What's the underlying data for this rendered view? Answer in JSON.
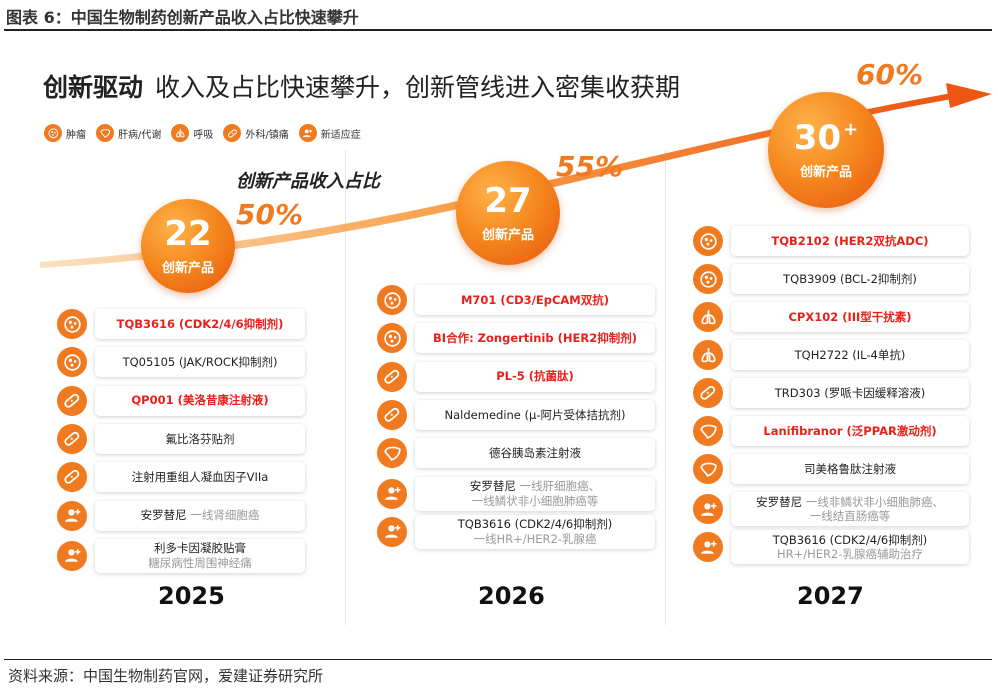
{
  "figure_title": "图表 6：中国生物制药创新产品收入占比快速攀升",
  "headline_bold": "创新驱动",
  "headline_rest": "收入及占比快速攀升，创新管线进入密集收获期",
  "subtitle": "创新产品收入占比",
  "source": "资料来源：中国生物制药官网，爱建证券研究所",
  "colors": {
    "accent": "#f07a1f",
    "highlight": "#e8201a",
    "secondary": "#9a9a9a"
  },
  "legend": [
    {
      "icon": "tumor-icon",
      "label": "肿瘤"
    },
    {
      "icon": "liver-icon",
      "label": "肝病/代谢"
    },
    {
      "icon": "lung-icon",
      "label": "呼吸"
    },
    {
      "icon": "bandage-icon",
      "label": "外科/镇痛"
    },
    {
      "icon": "person-plus-icon",
      "label": "新适应症"
    }
  ],
  "chart_data": {
    "type": "bar",
    "x": [
      "2025",
      "2026",
      "2027"
    ],
    "series": [
      {
        "values": [
          "22",
          "27",
          "30+"
        ]
      },
      {
        "values": [
          "50%",
          "55%",
          "60%"
        ]
      }
    ],
    "bubble_label": "创新产品",
    "columns": [
      {
        "year": "2025",
        "count": "22",
        "share": "50%",
        "items": [
          {
            "icon": "tumor-icon",
            "text": "TQB3616 (CDK2/4/6抑制剂)",
            "highlight": true,
            "sub": ""
          },
          {
            "icon": "tumor-icon",
            "text": "TQ05105 (JAK/ROCK抑制剂)",
            "highlight": false,
            "sub": ""
          },
          {
            "icon": "bandage-icon",
            "text": "QP001 (美洛昔康注射液)",
            "highlight": true,
            "sub": ""
          },
          {
            "icon": "bandage-icon",
            "text": "氟比洛芬贴剂",
            "highlight": false,
            "sub": ""
          },
          {
            "icon": "bandage-icon",
            "text": "注射用重组人凝血因子VIIa",
            "highlight": false,
            "sub": ""
          },
          {
            "icon": "person-plus-icon",
            "text": "安罗替尼",
            "highlight": false,
            "inline_sub": "一线肾细胞癌",
            "sub": ""
          },
          {
            "icon": "person-plus-icon",
            "text": "利多卡因凝胶贴膏",
            "highlight": false,
            "sub": "糖尿病性周围神经痛"
          }
        ]
      },
      {
        "year": "2026",
        "count": "27",
        "share": "55%",
        "items": [
          {
            "icon": "tumor-icon",
            "text": "M701 (CD3/EpCAM双抗)",
            "highlight": true,
            "sub": ""
          },
          {
            "icon": "tumor-icon",
            "text": "BI合作: Zongertinib (HER2抑制剂)",
            "highlight": true,
            "sub": ""
          },
          {
            "icon": "bandage-icon",
            "text": "PL-5 (抗菌肽)",
            "highlight": true,
            "sub": ""
          },
          {
            "icon": "bandage-icon",
            "text": "Naldemedine (μ-阿片受体拮抗剂)",
            "highlight": false,
            "sub": ""
          },
          {
            "icon": "liver-icon",
            "text": "德谷胰岛素注射液",
            "highlight": false,
            "sub": ""
          },
          {
            "icon": "person-plus-icon",
            "text": "安罗替尼",
            "highlight": false,
            "inline_sub": "一线肝细胞癌、",
            "sub": "一线鳞状非小细胞肺癌等"
          },
          {
            "icon": "person-plus-icon",
            "text": "TQB3616 (CDK2/4/6抑制剂)",
            "highlight": false,
            "sub": "一线HR+/HER2-乳腺癌"
          }
        ]
      },
      {
        "year": "2027",
        "count": "30",
        "count_suffix": "+",
        "share": "60%",
        "items": [
          {
            "icon": "tumor-icon",
            "text": "TQB2102 (HER2双抗ADC)",
            "highlight": true,
            "sub": ""
          },
          {
            "icon": "tumor-icon",
            "text": "TQB3909 (BCL-2抑制剂)",
            "highlight": false,
            "sub": ""
          },
          {
            "icon": "lung-icon",
            "text": "CPX102 (III型干扰素)",
            "highlight": true,
            "sub": ""
          },
          {
            "icon": "lung-icon",
            "text": "TQH2722 (IL-4单抗)",
            "highlight": false,
            "sub": ""
          },
          {
            "icon": "bandage-icon",
            "text": "TRD303 (罗哌卡因缓释溶液)",
            "highlight": false,
            "sub": ""
          },
          {
            "icon": "liver-icon",
            "text": "Lanifibranor (泛PPAR激动剂)",
            "highlight": true,
            "sub": ""
          },
          {
            "icon": "liver-icon",
            "text": "司美格鲁肽注射液",
            "highlight": false,
            "sub": ""
          },
          {
            "icon": "person-plus-icon",
            "text": "安罗替尼",
            "highlight": false,
            "inline_sub": "一线非鳞状非小细胞肺癌、",
            "sub": "一线结直肠癌等"
          },
          {
            "icon": "person-plus-icon",
            "text": "TQB3616 (CDK2/4/6抑制剂)",
            "highlight": false,
            "sub": "HR+/HER2-乳腺癌辅助治疗"
          }
        ]
      }
    ]
  }
}
